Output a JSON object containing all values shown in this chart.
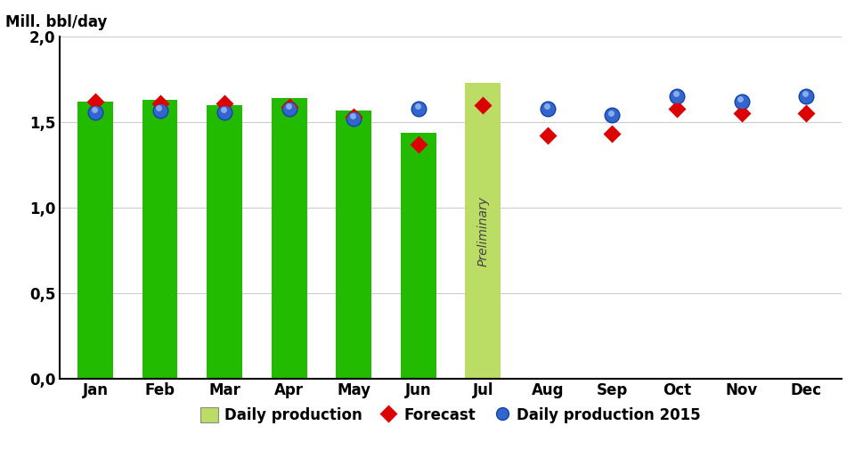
{
  "months": [
    "Jan",
    "Feb",
    "Mar",
    "Apr",
    "May",
    "Jun",
    "Jul",
    "Aug",
    "Sep",
    "Oct",
    "Nov",
    "Dec"
  ],
  "bar_values": [
    1.62,
    1.63,
    1.6,
    1.64,
    1.57,
    1.44,
    1.73,
    null,
    null,
    null,
    null,
    null
  ],
  "bar_colors": [
    "#22bb00",
    "#22bb00",
    "#22bb00",
    "#22bb00",
    "#22bb00",
    "#22bb00",
    "#bbdd66",
    null,
    null,
    null,
    null,
    null
  ],
  "forecast": [
    1.62,
    1.61,
    1.61,
    1.59,
    1.53,
    1.37,
    1.6,
    1.42,
    1.43,
    1.58,
    1.55,
    1.55
  ],
  "daily_2015": [
    1.56,
    1.57,
    1.56,
    1.58,
    1.52,
    1.58,
    null,
    1.58,
    1.54,
    1.65,
    1.62,
    1.65
  ],
  "ylim": [
    0.0,
    2.0
  ],
  "yticks": [
    0.0,
    0.5,
    1.0,
    1.5,
    2.0
  ],
  "ytick_labels": [
    "0,0",
    "0,5",
    "1,0",
    "1,5",
    "2,0"
  ],
  "ylabel": "Mill. bbl/day",
  "bar_width": 0.55,
  "preliminary_label": "Preliminary",
  "forecast_color": "#dd0000",
  "daily2015_color": "#3366cc",
  "bar_green": "#22bb00",
  "bar_light_green": "#bbdd66",
  "grid_color": "#cccccc",
  "spine_color": "#000000"
}
